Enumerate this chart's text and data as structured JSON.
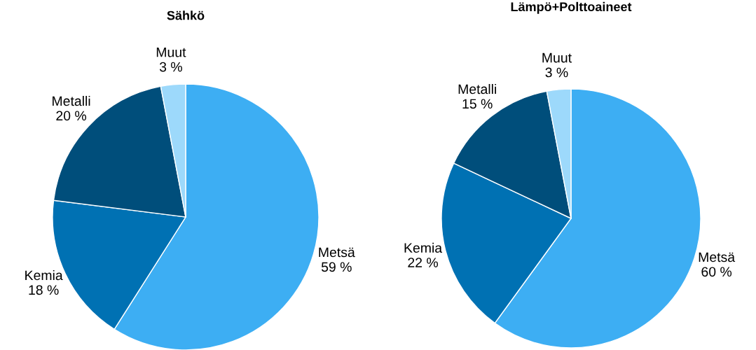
{
  "chart_data": [
    {
      "type": "pie",
      "title": "Sähkö",
      "categories": [
        "Metsä",
        "Kemia",
        "Metalli",
        "Muut"
      ],
      "values": [
        59,
        18,
        20,
        3
      ],
      "value_labels": [
        "59 %",
        "18 %",
        "20 %",
        "3 %"
      ],
      "colors": [
        "#3daef3",
        "#0071b3",
        "#004e7b",
        "#9dd9fb"
      ]
    },
    {
      "type": "pie",
      "title": "Lämpö+Polttoaineet",
      "categories": [
        "Metsä",
        "Kemia",
        "Metalli",
        "Muut"
      ],
      "values": [
        60,
        22,
        15,
        3
      ],
      "value_labels": [
        "60 %",
        "22 %",
        "15 %",
        "3 %"
      ],
      "colors": [
        "#3daef3",
        "#0071b3",
        "#004e7b",
        "#9dd9fb"
      ]
    }
  ]
}
